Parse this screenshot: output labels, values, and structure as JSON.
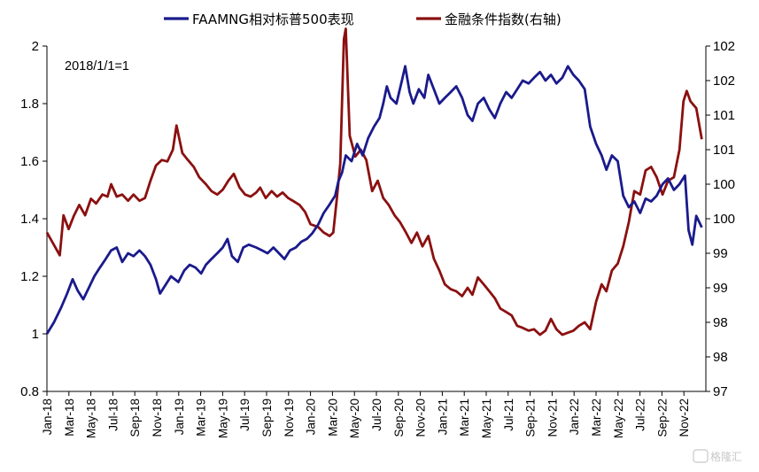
{
  "chart_data": {
    "type": "line",
    "annotation": "2018/1/1=1",
    "legend_position": "top-center",
    "grid": false,
    "watermark": "格隆汇",
    "left_axis": {
      "ylim": [
        0.8,
        2.0
      ],
      "ticks": [
        "0.8",
        "1",
        "1.2",
        "1.4",
        "1.6",
        "1.8",
        "2"
      ]
    },
    "right_axis": {
      "ylim": [
        97,
        102
      ],
      "ticks": [
        "97",
        "98",
        "98",
        "99",
        "99",
        "100",
        "100",
        "101",
        "101",
        "102",
        "102"
      ]
    },
    "x_ticks": [
      "Jan-18",
      "Mar-18",
      "May-18",
      "Jul-18",
      "Sep-18",
      "Nov-18",
      "Jan-19",
      "Mar-19",
      "May-19",
      "Jul-19",
      "Sep-19",
      "Nov-19",
      "Jan-20",
      "Mar-20",
      "May-20",
      "Jul-20",
      "Sep-20",
      "Nov-20",
      "Jan-21",
      "Mar-21",
      "May-21",
      "Jul-21",
      "Sep-21",
      "Nov-21",
      "Jan-22",
      "Mar-22",
      "May-22",
      "Jul-22",
      "Sep-22",
      "Nov-22"
    ],
    "series": [
      {
        "name": "FAAMNG相对标普500表现",
        "axis": "left",
        "color": "#1a1a8c",
        "points": [
          [
            "2018-01-01",
            1.0
          ],
          [
            "2018-01-20",
            1.04
          ],
          [
            "2018-02-08",
            1.09
          ],
          [
            "2018-02-25",
            1.14
          ],
          [
            "2018-03-12",
            1.19
          ],
          [
            "2018-03-26",
            1.15
          ],
          [
            "2018-04-10",
            1.12
          ],
          [
            "2018-04-25",
            1.16
          ],
          [
            "2018-05-10",
            1.2
          ],
          [
            "2018-05-25",
            1.23
          ],
          [
            "2018-06-10",
            1.26
          ],
          [
            "2018-06-25",
            1.29
          ],
          [
            "2018-07-10",
            1.3
          ],
          [
            "2018-07-25",
            1.25
          ],
          [
            "2018-08-10",
            1.28
          ],
          [
            "2018-08-25",
            1.27
          ],
          [
            "2018-09-10",
            1.29
          ],
          [
            "2018-09-25",
            1.27
          ],
          [
            "2018-10-10",
            1.24
          ],
          [
            "2018-10-25",
            1.19
          ],
          [
            "2018-11-05",
            1.14
          ],
          [
            "2018-11-20",
            1.17
          ],
          [
            "2018-12-05",
            1.2
          ],
          [
            "2018-12-25",
            1.18
          ],
          [
            "2019-01-10",
            1.22
          ],
          [
            "2019-01-25",
            1.24
          ],
          [
            "2019-02-10",
            1.23
          ],
          [
            "2019-02-25",
            1.21
          ],
          [
            "2019-03-10",
            1.24
          ],
          [
            "2019-03-25",
            1.26
          ],
          [
            "2019-04-10",
            1.28
          ],
          [
            "2019-04-25",
            1.3
          ],
          [
            "2019-05-08",
            1.33
          ],
          [
            "2019-05-20",
            1.27
          ],
          [
            "2019-06-05",
            1.25
          ],
          [
            "2019-06-20",
            1.3
          ],
          [
            "2019-07-05",
            1.31
          ],
          [
            "2019-07-25",
            1.3
          ],
          [
            "2019-08-10",
            1.29
          ],
          [
            "2019-08-25",
            1.28
          ],
          [
            "2019-09-10",
            1.3
          ],
          [
            "2019-09-25",
            1.28
          ],
          [
            "2019-10-10",
            1.26
          ],
          [
            "2019-10-25",
            1.29
          ],
          [
            "2019-11-10",
            1.3
          ],
          [
            "2019-11-25",
            1.32
          ],
          [
            "2019-12-10",
            1.33
          ],
          [
            "2019-12-25",
            1.35
          ],
          [
            "2020-01-10",
            1.38
          ],
          [
            "2020-01-25",
            1.42
          ],
          [
            "2020-02-10",
            1.45
          ],
          [
            "2020-02-25",
            1.48
          ],
          [
            "2020-03-05",
            1.53
          ],
          [
            "2020-03-15",
            1.56
          ],
          [
            "2020-03-25",
            1.62
          ],
          [
            "2020-04-10",
            1.6
          ],
          [
            "2020-04-25",
            1.66
          ],
          [
            "2020-05-10",
            1.62
          ],
          [
            "2020-05-25",
            1.68
          ],
          [
            "2020-06-10",
            1.72
          ],
          [
            "2020-06-25",
            1.75
          ],
          [
            "2020-07-05",
            1.8
          ],
          [
            "2020-07-15",
            1.86
          ],
          [
            "2020-07-25",
            1.82
          ],
          [
            "2020-08-10",
            1.8
          ],
          [
            "2020-08-25",
            1.88
          ],
          [
            "2020-09-03",
            1.93
          ],
          [
            "2020-09-15",
            1.84
          ],
          [
            "2020-09-25",
            1.8
          ],
          [
            "2020-10-10",
            1.85
          ],
          [
            "2020-10-25",
            1.82
          ],
          [
            "2020-11-05",
            1.9
          ],
          [
            "2020-11-20",
            1.85
          ],
          [
            "2020-12-05",
            1.8
          ],
          [
            "2020-12-20",
            1.82
          ],
          [
            "2021-01-05",
            1.84
          ],
          [
            "2021-01-20",
            1.86
          ],
          [
            "2021-02-05",
            1.82
          ],
          [
            "2021-02-20",
            1.76
          ],
          [
            "2021-03-05",
            1.74
          ],
          [
            "2021-03-20",
            1.8
          ],
          [
            "2021-04-05",
            1.82
          ],
          [
            "2021-04-20",
            1.78
          ],
          [
            "2021-05-05",
            1.75
          ],
          [
            "2021-05-20",
            1.8
          ],
          [
            "2021-06-05",
            1.84
          ],
          [
            "2021-06-20",
            1.82
          ],
          [
            "2021-07-05",
            1.85
          ],
          [
            "2021-07-20",
            1.88
          ],
          [
            "2021-08-05",
            1.87
          ],
          [
            "2021-08-20",
            1.89
          ],
          [
            "2021-09-05",
            1.91
          ],
          [
            "2021-09-20",
            1.88
          ],
          [
            "2021-10-05",
            1.9
          ],
          [
            "2021-10-20",
            1.87
          ],
          [
            "2021-11-05",
            1.89
          ],
          [
            "2021-11-20",
            1.93
          ],
          [
            "2021-12-05",
            1.9
          ],
          [
            "2021-12-20",
            1.88
          ],
          [
            "2022-01-05",
            1.85
          ],
          [
            "2022-01-20",
            1.72
          ],
          [
            "2022-02-05",
            1.66
          ],
          [
            "2022-02-20",
            1.62
          ],
          [
            "2022-03-05",
            1.57
          ],
          [
            "2022-03-20",
            1.62
          ],
          [
            "2022-04-05",
            1.6
          ],
          [
            "2022-04-20",
            1.48
          ],
          [
            "2022-05-05",
            1.44
          ],
          [
            "2022-05-20",
            1.46
          ],
          [
            "2022-06-05",
            1.42
          ],
          [
            "2022-06-20",
            1.47
          ],
          [
            "2022-07-05",
            1.46
          ],
          [
            "2022-07-20",
            1.48
          ],
          [
            "2022-08-05",
            1.52
          ],
          [
            "2022-08-20",
            1.54
          ],
          [
            "2022-09-05",
            1.5
          ],
          [
            "2022-09-20",
            1.52
          ],
          [
            "2022-10-05",
            1.55
          ],
          [
            "2022-10-15",
            1.36
          ],
          [
            "2022-10-25",
            1.31
          ],
          [
            "2022-11-05",
            1.41
          ],
          [
            "2022-11-20",
            1.37
          ]
        ]
      },
      {
        "name": "金融条件指数(右轴)",
        "axis": "right",
        "color": "#8b1010",
        "points": [
          [
            "2018-01-01",
            99.3
          ],
          [
            "2018-01-20",
            99.12
          ],
          [
            "2018-02-05",
            98.97
          ],
          [
            "2018-02-15",
            99.55
          ],
          [
            "2018-03-01",
            99.35
          ],
          [
            "2018-03-15",
            99.54
          ],
          [
            "2018-03-30",
            99.7
          ],
          [
            "2018-04-15",
            99.55
          ],
          [
            "2018-05-01",
            99.79
          ],
          [
            "2018-05-15",
            99.72
          ],
          [
            "2018-06-01",
            99.85
          ],
          [
            "2018-06-15",
            99.82
          ],
          [
            "2018-06-25",
            100.0
          ],
          [
            "2018-07-10",
            99.82
          ],
          [
            "2018-07-25",
            99.85
          ],
          [
            "2018-08-10",
            99.76
          ],
          [
            "2018-08-25",
            99.85
          ],
          [
            "2018-09-10",
            99.76
          ],
          [
            "2018-09-25",
            99.8
          ],
          [
            "2018-10-10",
            100.05
          ],
          [
            "2018-10-25",
            100.27
          ],
          [
            "2018-11-10",
            100.35
          ],
          [
            "2018-11-25",
            100.33
          ],
          [
            "2018-12-10",
            100.5
          ],
          [
            "2018-12-20",
            100.85
          ],
          [
            "2019-01-05",
            100.45
          ],
          [
            "2019-01-20",
            100.35
          ],
          [
            "2019-02-05",
            100.25
          ],
          [
            "2019-02-20",
            100.1
          ],
          [
            "2019-03-10",
            100.0
          ],
          [
            "2019-03-25",
            99.9
          ],
          [
            "2019-04-10",
            99.85
          ],
          [
            "2019-04-25",
            99.92
          ],
          [
            "2019-05-10",
            100.05
          ],
          [
            "2019-05-25",
            100.15
          ],
          [
            "2019-06-10",
            99.95
          ],
          [
            "2019-06-25",
            99.85
          ],
          [
            "2019-07-10",
            99.82
          ],
          [
            "2019-07-25",
            99.88
          ],
          [
            "2019-08-05",
            99.95
          ],
          [
            "2019-08-20",
            99.8
          ],
          [
            "2019-09-05",
            99.9
          ],
          [
            "2019-09-20",
            99.82
          ],
          [
            "2019-10-05",
            99.88
          ],
          [
            "2019-10-20",
            99.8
          ],
          [
            "2019-11-05",
            99.75
          ],
          [
            "2019-11-20",
            99.7
          ],
          [
            "2019-12-05",
            99.6
          ],
          [
            "2019-12-20",
            99.42
          ],
          [
            "2020-01-10",
            99.38
          ],
          [
            "2020-01-25",
            99.3
          ],
          [
            "2020-02-10",
            99.25
          ],
          [
            "2020-02-20",
            99.3
          ],
          [
            "2020-03-01",
            99.8
          ],
          [
            "2020-03-10",
            100.3
          ],
          [
            "2020-03-20",
            102.1
          ],
          [
            "2020-03-25",
            102.25
          ],
          [
            "2020-04-05",
            100.7
          ],
          [
            "2020-04-20",
            100.4
          ],
          [
            "2020-05-05",
            100.5
          ],
          [
            "2020-05-20",
            100.35
          ],
          [
            "2020-06-05",
            99.9
          ],
          [
            "2020-06-20",
            100.05
          ],
          [
            "2020-07-05",
            99.8
          ],
          [
            "2020-07-20",
            99.7
          ],
          [
            "2020-08-05",
            99.55
          ],
          [
            "2020-08-20",
            99.45
          ],
          [
            "2020-09-05",
            99.3
          ],
          [
            "2020-09-20",
            99.15
          ],
          [
            "2020-10-05",
            99.3
          ],
          [
            "2020-10-20",
            99.1
          ],
          [
            "2020-11-05",
            99.25
          ],
          [
            "2020-11-20",
            98.92
          ],
          [
            "2020-12-05",
            98.75
          ],
          [
            "2020-12-20",
            98.55
          ],
          [
            "2021-01-05",
            98.48
          ],
          [
            "2021-01-20",
            98.45
          ],
          [
            "2021-02-05",
            98.38
          ],
          [
            "2021-02-20",
            98.5
          ],
          [
            "2021-03-05",
            98.4
          ],
          [
            "2021-03-20",
            98.65
          ],
          [
            "2021-04-05",
            98.55
          ],
          [
            "2021-04-20",
            98.45
          ],
          [
            "2021-05-05",
            98.35
          ],
          [
            "2021-05-20",
            98.2
          ],
          [
            "2021-06-05",
            98.15
          ],
          [
            "2021-06-20",
            98.1
          ],
          [
            "2021-07-05",
            97.95
          ],
          [
            "2021-07-20",
            97.92
          ],
          [
            "2021-08-05",
            97.88
          ],
          [
            "2021-08-20",
            97.9
          ],
          [
            "2021-09-05",
            97.82
          ],
          [
            "2021-09-20",
            97.88
          ],
          [
            "2021-10-05",
            98.05
          ],
          [
            "2021-10-20",
            97.9
          ],
          [
            "2021-11-05",
            97.82
          ],
          [
            "2021-11-20",
            97.85
          ],
          [
            "2021-12-05",
            97.88
          ],
          [
            "2021-12-20",
            97.95
          ],
          [
            "2022-01-05",
            98.0
          ],
          [
            "2022-01-20",
            97.9
          ],
          [
            "2022-02-05",
            98.3
          ],
          [
            "2022-02-20",
            98.55
          ],
          [
            "2022-03-05",
            98.45
          ],
          [
            "2022-03-20",
            98.75
          ],
          [
            "2022-04-05",
            98.85
          ],
          [
            "2022-04-20",
            99.1
          ],
          [
            "2022-05-05",
            99.45
          ],
          [
            "2022-05-20",
            99.9
          ],
          [
            "2022-06-05",
            99.85
          ],
          [
            "2022-06-20",
            100.2
          ],
          [
            "2022-07-05",
            100.25
          ],
          [
            "2022-07-20",
            100.1
          ],
          [
            "2022-08-05",
            99.85
          ],
          [
            "2022-08-20",
            100.05
          ],
          [
            "2022-09-05",
            100.1
          ],
          [
            "2022-09-20",
            100.5
          ],
          [
            "2022-10-01",
            101.2
          ],
          [
            "2022-10-10",
            101.35
          ],
          [
            "2022-10-20",
            101.2
          ],
          [
            "2022-11-05",
            101.1
          ],
          [
            "2022-11-20",
            100.65
          ]
        ]
      }
    ]
  }
}
